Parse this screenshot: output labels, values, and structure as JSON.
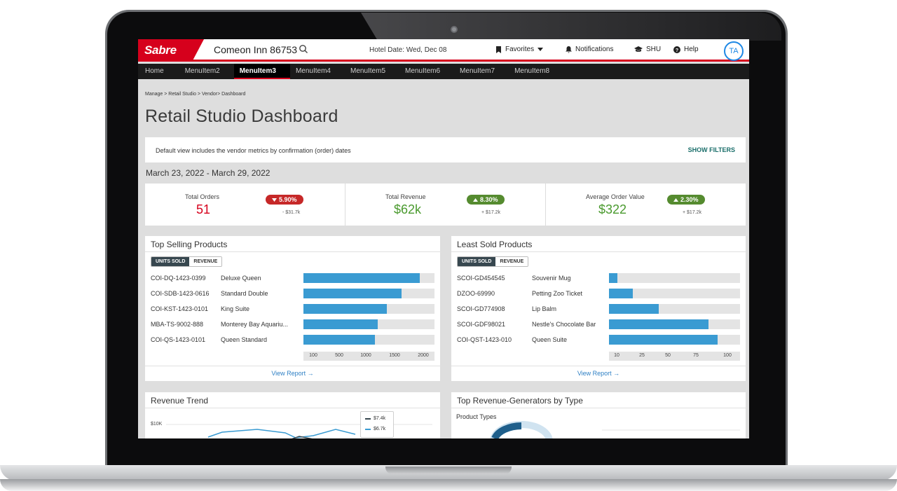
{
  "app": {
    "logo": "Sabre",
    "hotel_name": "Comeon Inn 86753",
    "hotel_date": "Hotel Date: Wed, Dec 08",
    "favorites": "Favorites",
    "notifications": "Notifications",
    "shu": "SHU",
    "help": "Help",
    "avatar": "TA",
    "brand_color": "#d6001c"
  },
  "menu": {
    "items": [
      "Home",
      "MenuItem2",
      "MenuItem3",
      "MenuItem4",
      "MenuItem5",
      "MenuItem6",
      "MenuItem7",
      "MenuItem8"
    ],
    "active": "MenuItem3"
  },
  "breadcrumb": "Manage > Retail Studio > Vendor> Dashboard",
  "page_title": "Retail Studio Dashboard",
  "info": {
    "text": "Default view includes the vendor metrics by confirmation (order) dates",
    "show_filters": "SHOW FILTERS"
  },
  "date_range": "March 23, 2022 - March 29, 2022",
  "kpis": [
    {
      "label": "Total Orders",
      "value": "51",
      "badge": "5.90%",
      "direction": "down",
      "sub": "- $31.7k",
      "value_color": "#d6001c",
      "badge_color": "#c62828"
    },
    {
      "label": "Total Revenue",
      "value": "$62k",
      "badge": "8.30%",
      "direction": "up",
      "sub": "+ $17.2k",
      "value_color": "#4a9a2e",
      "badge_color": "#558b2f"
    },
    {
      "label": "Average Order Value",
      "value": "$322",
      "badge": "2.30%",
      "direction": "up",
      "sub": "+ $17.2k",
      "value_color": "#4a9a2e",
      "badge_color": "#558b2f"
    }
  ],
  "top_selling": {
    "title": "Top Selling Products",
    "toggle": [
      "UNITS SOLD",
      "REVENUE"
    ],
    "rows": [
      {
        "code": "COI-DQ-1423-0399",
        "name": "Deluxe Queen",
        "value": 1950
      },
      {
        "code": "COI-SDB-1423-0616",
        "name": "Standard Double",
        "value": 1650
      },
      {
        "code": "COI-KST-1423-0101",
        "name": "King Suite",
        "value": 1400
      },
      {
        "code": "MBA-TS-9002-888",
        "name": "Monterey Bay Aquariu...",
        "value": 1250
      },
      {
        "code": "COI-QS-1423-0101",
        "name": "Queen Standard",
        "value": 1200
      }
    ],
    "axis": [
      "100",
      "500",
      "1000",
      "1500",
      "2000"
    ],
    "view_report": "View Report →"
  },
  "least_sold": {
    "title": "Least Sold Products",
    "toggle": [
      "UNITS SOLD",
      "REVENUE"
    ],
    "rows": [
      {
        "code": "SCOI-GD454545",
        "name": "Souvenir Mug",
        "value": 7
      },
      {
        "code": "DZOO-69990",
        "name": "Petting Zoo Ticket",
        "value": 19
      },
      {
        "code": "SCOI-GD774908",
        "name": "Lip Balm",
        "value": 40
      },
      {
        "code": "SCOI-GDF98021",
        "name": "Nestle's Chocolate Bar",
        "value": 80
      },
      {
        "code": "COI-QST-1423-010",
        "name": "Queen Suite",
        "value": 87
      }
    ],
    "axis": [
      "10",
      "25",
      "50",
      "75",
      "100"
    ],
    "view_report": "View Report →"
  },
  "revenue_trend": {
    "title": "Revenue Trend",
    "y_tick": "$10K",
    "legend": [
      {
        "label": "$7.4k",
        "color": "#37474f"
      },
      {
        "label": "$6.7k",
        "color": "#3a9bd2"
      }
    ]
  },
  "top_generators": {
    "title": "Top Revenue-Generators by Type",
    "subtitle": "Product Types"
  }
}
